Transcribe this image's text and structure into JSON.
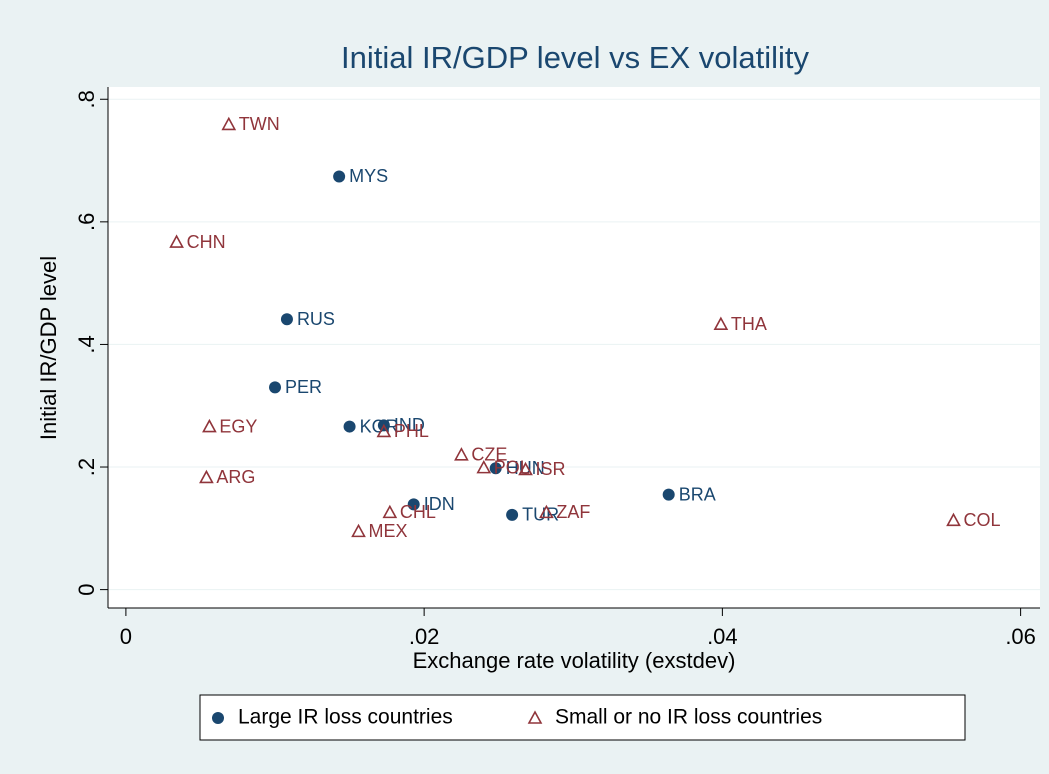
{
  "chart_data": {
    "type": "scatter",
    "title": "Initial IR/GDP level vs EX volatility",
    "xlabel": "Exchange rate volatility (exstdev)",
    "ylabel": "Initial IR/GDP level",
    "xlim": [
      -0.0012,
      0.0613
    ],
    "ylim": [
      -0.03,
      0.82
    ],
    "xticks": [
      0,
      {
        "value": 0.02,
        "label": ".02"
      },
      {
        "value": 0.04,
        "label": ".04"
      },
      {
        "value": 0.06,
        "label": ".06"
      }
    ],
    "yticks": [
      0,
      {
        "value": 0.2,
        "label": ".2"
      },
      {
        "value": 0.4,
        "label": ".4"
      },
      {
        "value": 0.6,
        "label": ".6"
      },
      {
        "value": 0.8,
        "label": ".8"
      }
    ],
    "grid": true,
    "legend": "bottom",
    "series": [
      {
        "name": "Large IR loss countries",
        "color": "#1a476f",
        "marker": "circle",
        "labels": [
          "MYS",
          "RUS",
          "PER",
          "KOR",
          "IND",
          "IDN",
          "HUN",
          "TUR",
          "BRA"
        ],
        "x": [
          0.0143,
          0.0108,
          0.01,
          0.015,
          0.0173,
          0.0193,
          0.0248,
          0.0259,
          0.0364
        ],
        "values": [
          0.674,
          0.441,
          0.33,
          0.266,
          0.268,
          0.139,
          0.198,
          0.122,
          0.155
        ]
      },
      {
        "name": "Small or no IR loss countries",
        "color": "#90353b",
        "marker": "triangle",
        "labels": [
          "TWN",
          "CHN",
          "THA",
          "EGY",
          "PHL",
          "CZE",
          "POL",
          "ISR",
          "ARG",
          "CHL",
          "ZAF",
          "MEX",
          "COL"
        ],
        "x": [
          0.0069,
          0.0034,
          0.0399,
          0.0056,
          0.0173,
          0.0225,
          0.024,
          0.0268,
          0.0054,
          0.0177,
          0.0282,
          0.0156,
          0.0555
        ],
        "values": [
          0.759,
          0.567,
          0.433,
          0.266,
          0.258,
          0.22,
          0.199,
          0.196,
          0.183,
          0.126,
          0.126,
          0.095,
          0.113
        ]
      }
    ]
  }
}
